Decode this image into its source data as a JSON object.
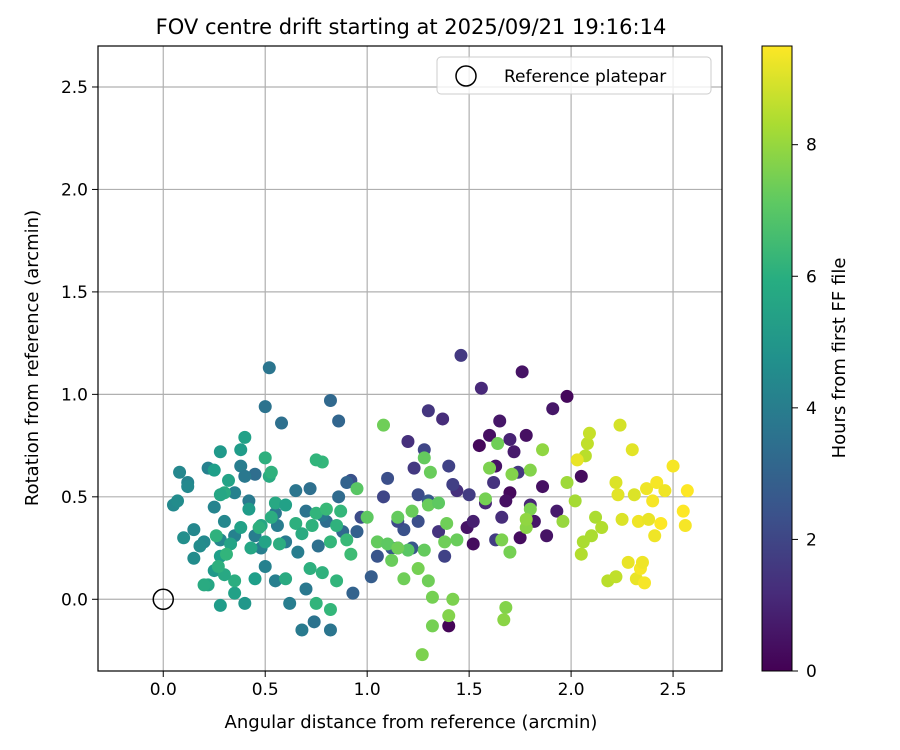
{
  "chart_data": {
    "type": "scatter",
    "title": "FOV centre drift starting at 2025/09/21 19:16:14",
    "xlabel": "Angular distance from reference (arcmin)",
    "ylabel": "Rotation from reference (arcmin)",
    "xlim": [
      -0.32,
      2.74
    ],
    "ylim": [
      -0.35,
      2.7
    ],
    "xticks": [
      0.0,
      0.5,
      1.0,
      1.5,
      2.0,
      2.5
    ],
    "xtick_labels": [
      "0.0",
      "0.5",
      "1.0",
      "1.5",
      "2.0",
      "2.5"
    ],
    "yticks": [
      0.0,
      0.5,
      1.0,
      1.5,
      2.0,
      2.5
    ],
    "ytick_labels": [
      "0.0",
      "0.5",
      "1.0",
      "1.5",
      "2.0",
      "2.5"
    ],
    "grid": true,
    "legend": {
      "position": "top-right",
      "label": "Reference platepar"
    },
    "reference_point": {
      "x": 0.0,
      "y": 0.0
    },
    "colorbar": {
      "label": "Hours from first FF file",
      "min": 0,
      "max": 9.5,
      "ticks": [
        0,
        2,
        4,
        6,
        8
      ],
      "tick_labels": [
        "0",
        "2",
        "4",
        "6",
        "8"
      ],
      "colormap": "viridis"
    },
    "points": [
      {
        "x": 1.4,
        "y": -0.13,
        "h": 0.1
      },
      {
        "x": 1.52,
        "y": 0.27,
        "h": 0.3
      },
      {
        "x": 1.55,
        "y": 0.75,
        "h": 0.2
      },
      {
        "x": 1.6,
        "y": 0.8,
        "h": 0.4
      },
      {
        "x": 1.63,
        "y": 0.65,
        "h": 0.5
      },
      {
        "x": 1.65,
        "y": 0.87,
        "h": 0.6
      },
      {
        "x": 1.7,
        "y": 0.52,
        "h": 0.2
      },
      {
        "x": 1.72,
        "y": 0.72,
        "h": 0.7
      },
      {
        "x": 1.75,
        "y": 0.3,
        "h": 0.3
      },
      {
        "x": 1.76,
        "y": 1.11,
        "h": 0.5
      },
      {
        "x": 1.78,
        "y": 0.8,
        "h": 0.4
      },
      {
        "x": 1.82,
        "y": 0.38,
        "h": 0.6
      },
      {
        "x": 1.86,
        "y": 0.55,
        "h": 0.4
      },
      {
        "x": 1.88,
        "y": 0.31,
        "h": 0.5
      },
      {
        "x": 1.91,
        "y": 0.93,
        "h": 0.6
      },
      {
        "x": 1.93,
        "y": 0.43,
        "h": 0.7
      },
      {
        "x": 1.98,
        "y": 0.99,
        "h": 0.2
      },
      {
        "x": 2.05,
        "y": 0.6,
        "h": 0.3
      },
      {
        "x": 1.49,
        "y": 0.35,
        "h": 0.5
      },
      {
        "x": 1.68,
        "y": 0.48,
        "h": 0.4
      },
      {
        "x": 1.52,
        "y": 0.38,
        "h": 0.8
      },
      {
        "x": 1.46,
        "y": 1.19,
        "h": 1.6
      },
      {
        "x": 1.58,
        "y": 0.47,
        "h": 1.0
      },
      {
        "x": 1.56,
        "y": 1.03,
        "h": 1.1
      },
      {
        "x": 1.62,
        "y": 0.57,
        "h": 1.4
      },
      {
        "x": 1.66,
        "y": 0.4,
        "h": 1.2
      },
      {
        "x": 1.7,
        "y": 0.78,
        "h": 0.9
      },
      {
        "x": 1.74,
        "y": 0.62,
        "h": 1.5
      },
      {
        "x": 1.8,
        "y": 0.46,
        "h": 1.0
      },
      {
        "x": 1.44,
        "y": 0.53,
        "h": 1.3
      },
      {
        "x": 1.5,
        "y": 0.51,
        "h": 1.7
      },
      {
        "x": 1.37,
        "y": 0.88,
        "h": 1.2
      },
      {
        "x": 1.4,
        "y": 0.65,
        "h": 1.9
      },
      {
        "x": 1.42,
        "y": 0.56,
        "h": 1.8
      },
      {
        "x": 1.3,
        "y": 0.92,
        "h": 1.5
      },
      {
        "x": 1.28,
        "y": 0.73,
        "h": 2.0
      },
      {
        "x": 1.23,
        "y": 0.64,
        "h": 1.6
      },
      {
        "x": 1.25,
        "y": 0.51,
        "h": 2.2
      },
      {
        "x": 1.2,
        "y": 0.77,
        "h": 1.3
      },
      {
        "x": 1.18,
        "y": 0.34,
        "h": 2.4
      },
      {
        "x": 1.15,
        "y": 0.38,
        "h": 2.1
      },
      {
        "x": 1.12,
        "y": 0.25,
        "h": 2.6
      },
      {
        "x": 1.1,
        "y": 0.59,
        "h": 2.3
      },
      {
        "x": 1.08,
        "y": 0.5,
        "h": 2.0
      },
      {
        "x": 1.05,
        "y": 0.21,
        "h": 2.5
      },
      {
        "x": 1.02,
        "y": 0.11,
        "h": 2.8
      },
      {
        "x": 0.97,
        "y": 0.4,
        "h": 2.2
      },
      {
        "x": 0.95,
        "y": 0.33,
        "h": 2.9
      },
      {
        "x": 0.92,
        "y": 0.58,
        "h": 2.4
      },
      {
        "x": 1.22,
        "y": 0.25,
        "h": 2.6
      },
      {
        "x": 1.3,
        "y": 0.48,
        "h": 2.7
      },
      {
        "x": 1.35,
        "y": 0.33,
        "h": 1.4
      },
      {
        "x": 1.38,
        "y": 0.21,
        "h": 1.9
      },
      {
        "x": 1.63,
        "y": 0.29,
        "h": 1.7
      },
      {
        "x": 1.15,
        "y": 0.25,
        "h": 2.5
      },
      {
        "x": 1.25,
        "y": 0.38,
        "h": 2.3
      },
      {
        "x": 0.52,
        "y": 1.13,
        "h": 3.7
      },
      {
        "x": 0.5,
        "y": 0.94,
        "h": 3.6
      },
      {
        "x": 0.58,
        "y": 0.86,
        "h": 3.5
      },
      {
        "x": 0.82,
        "y": 0.97,
        "h": 3.2
      },
      {
        "x": 0.86,
        "y": 0.87,
        "h": 3.1
      },
      {
        "x": 0.9,
        "y": 0.57,
        "h": 3.0
      },
      {
        "x": 0.86,
        "y": 0.5,
        "h": 3.3
      },
      {
        "x": 0.8,
        "y": 0.38,
        "h": 3.4
      },
      {
        "x": 0.76,
        "y": 0.26,
        "h": 3.5
      },
      {
        "x": 0.7,
        "y": 0.05,
        "h": 3.8
      },
      {
        "x": 0.68,
        "y": -0.15,
        "h": 3.9
      },
      {
        "x": 0.74,
        "y": -0.11,
        "h": 3.6
      },
      {
        "x": 0.82,
        "y": -0.15,
        "h": 3.7
      },
      {
        "x": 0.93,
        "y": 0.03,
        "h": 3.0
      },
      {
        "x": 0.62,
        "y": -0.02,
        "h": 4.0
      },
      {
        "x": 0.55,
        "y": 0.09,
        "h": 4.1
      },
      {
        "x": 0.5,
        "y": 0.16,
        "h": 4.2
      },
      {
        "x": 0.45,
        "y": 0.61,
        "h": 3.4
      },
      {
        "x": 0.42,
        "y": 0.48,
        "h": 3.9
      },
      {
        "x": 0.38,
        "y": 0.65,
        "h": 4.0
      },
      {
        "x": 0.35,
        "y": 0.52,
        "h": 4.2
      },
      {
        "x": 0.3,
        "y": 0.38,
        "h": 4.4
      },
      {
        "x": 0.25,
        "y": 0.45,
        "h": 4.3
      },
      {
        "x": 0.2,
        "y": 0.28,
        "h": 4.5
      },
      {
        "x": 0.15,
        "y": 0.2,
        "h": 4.6
      },
      {
        "x": 0.1,
        "y": 0.3,
        "h": 4.7
      },
      {
        "x": 0.05,
        "y": 0.46,
        "h": 4.5
      },
      {
        "x": 0.08,
        "y": 0.62,
        "h": 4.4
      },
      {
        "x": 0.12,
        "y": 0.57,
        "h": 4.3
      },
      {
        "x": 0.22,
        "y": 0.64,
        "h": 4.2
      },
      {
        "x": 0.55,
        "y": 0.42,
        "h": 3.8
      },
      {
        "x": 0.6,
        "y": 0.28,
        "h": 3.9
      },
      {
        "x": 0.65,
        "y": 0.53,
        "h": 3.7
      },
      {
        "x": 0.7,
        "y": 0.43,
        "h": 3.6
      },
      {
        "x": 0.72,
        "y": 0.54,
        "h": 3.5
      },
      {
        "x": 0.78,
        "y": 0.41,
        "h": 3.8
      },
      {
        "x": 0.66,
        "y": 0.23,
        "h": 4.0
      },
      {
        "x": 0.88,
        "y": 0.33,
        "h": 3.2
      },
      {
        "x": 0.56,
        "y": 0.36,
        "h": 4.0
      },
      {
        "x": 0.48,
        "y": 0.25,
        "h": 4.1
      },
      {
        "x": 0.15,
        "y": 0.34,
        "h": 4.4
      },
      {
        "x": 0.07,
        "y": 0.48,
        "h": 4.6
      },
      {
        "x": 0.4,
        "y": 0.6,
        "h": 3.8
      },
      {
        "x": 0.45,
        "y": 0.31,
        "h": 4.0
      },
      {
        "x": 0.35,
        "y": 0.31,
        "h": 4.2
      },
      {
        "x": 0.28,
        "y": 0.29,
        "h": 4.4
      },
      {
        "x": 0.12,
        "y": 0.55,
        "h": 4.5
      },
      {
        "x": 0.18,
        "y": 0.26,
        "h": 4.6
      },
      {
        "x": 0.4,
        "y": 0.79,
        "h": 5.4
      },
      {
        "x": 0.38,
        "y": 0.73,
        "h": 5.2
      },
      {
        "x": 0.28,
        "y": 0.72,
        "h": 5.1
      },
      {
        "x": 0.25,
        "y": 0.63,
        "h": 5.3
      },
      {
        "x": 0.32,
        "y": 0.58,
        "h": 5.5
      },
      {
        "x": 0.3,
        "y": 0.52,
        "h": 5.8
      },
      {
        "x": 0.28,
        "y": 0.51,
        "h": 5.6
      },
      {
        "x": 0.42,
        "y": 0.44,
        "h": 5.2
      },
      {
        "x": 0.38,
        "y": 0.35,
        "h": 5.4
      },
      {
        "x": 0.33,
        "y": 0.27,
        "h": 5.5
      },
      {
        "x": 0.28,
        "y": 0.21,
        "h": 5.3
      },
      {
        "x": 0.25,
        "y": 0.14,
        "h": 5.1
      },
      {
        "x": 0.22,
        "y": 0.07,
        "h": 5.6
      },
      {
        "x": 0.28,
        "y": -0.03,
        "h": 5.2
      },
      {
        "x": 0.35,
        "y": 0.03,
        "h": 5.4
      },
      {
        "x": 0.4,
        "y": -0.02,
        "h": 5.0
      },
      {
        "x": 0.45,
        "y": 0.1,
        "h": 5.3
      },
      {
        "x": 0.5,
        "y": 0.69,
        "h": 6.0
      },
      {
        "x": 0.52,
        "y": 0.6,
        "h": 5.8
      },
      {
        "x": 0.53,
        "y": 0.62,
        "h": 6.1
      },
      {
        "x": 0.55,
        "y": 0.47,
        "h": 5.7
      },
      {
        "x": 0.53,
        "y": 0.4,
        "h": 5.9
      },
      {
        "x": 0.48,
        "y": 0.36,
        "h": 5.6
      },
      {
        "x": 0.5,
        "y": 0.28,
        "h": 5.5
      },
      {
        "x": 0.6,
        "y": 0.46,
        "h": 5.4
      },
      {
        "x": 0.65,
        "y": 0.37,
        "h": 6.0
      },
      {
        "x": 0.68,
        "y": 0.32,
        "h": 5.8
      },
      {
        "x": 0.73,
        "y": 0.36,
        "h": 6.1
      },
      {
        "x": 0.75,
        "y": 0.42,
        "h": 6.2
      },
      {
        "x": 0.78,
        "y": 0.67,
        "h": 6.3
      },
      {
        "x": 0.75,
        "y": 0.68,
        "h": 6.2
      },
      {
        "x": 0.8,
        "y": 0.44,
        "h": 6.4
      },
      {
        "x": 0.82,
        "y": 0.28,
        "h": 6.3
      },
      {
        "x": 0.85,
        "y": 0.36,
        "h": 6.1
      },
      {
        "x": 0.87,
        "y": 0.43,
        "h": 6.3
      },
      {
        "x": 0.9,
        "y": 0.29,
        "h": 6.4
      },
      {
        "x": 0.92,
        "y": 0.22,
        "h": 6.5
      },
      {
        "x": 0.75,
        "y": -0.02,
        "h": 6.2
      },
      {
        "x": 0.82,
        "y": -0.05,
        "h": 6.3
      },
      {
        "x": 0.72,
        "y": 0.15,
        "h": 6.0
      },
      {
        "x": 0.78,
        "y": 0.13,
        "h": 6.1
      },
      {
        "x": 0.85,
        "y": 0.09,
        "h": 6.2
      },
      {
        "x": 0.35,
        "y": 0.09,
        "h": 5.9
      },
      {
        "x": 0.3,
        "y": 0.12,
        "h": 5.7
      },
      {
        "x": 0.2,
        "y": 0.07,
        "h": 5.8
      },
      {
        "x": 0.27,
        "y": 0.16,
        "h": 6.0
      },
      {
        "x": 0.31,
        "y": 0.22,
        "h": 6.2
      },
      {
        "x": 0.26,
        "y": 0.31,
        "h": 6.1
      },
      {
        "x": 0.43,
        "y": 0.25,
        "h": 5.6
      },
      {
        "x": 0.47,
        "y": 0.35,
        "h": 6.0
      },
      {
        "x": 0.57,
        "y": 0.27,
        "h": 5.9
      },
      {
        "x": 0.6,
        "y": 0.1,
        "h": 5.8
      },
      {
        "x": 0.95,
        "y": 0.54,
        "h": 7.0
      },
      {
        "x": 1.0,
        "y": 0.4,
        "h": 7.1
      },
      {
        "x": 1.05,
        "y": 0.28,
        "h": 7.2
      },
      {
        "x": 1.08,
        "y": 0.85,
        "h": 7.4
      },
      {
        "x": 1.1,
        "y": 0.27,
        "h": 7.1
      },
      {
        "x": 1.12,
        "y": 0.19,
        "h": 7.3
      },
      {
        "x": 1.15,
        "y": 0.4,
        "h": 7.2
      },
      {
        "x": 1.18,
        "y": 0.1,
        "h": 7.4
      },
      {
        "x": 1.2,
        "y": 0.24,
        "h": 7.0
      },
      {
        "x": 1.22,
        "y": 0.43,
        "h": 7.3
      },
      {
        "x": 1.25,
        "y": 0.15,
        "h": 7.5
      },
      {
        "x": 1.27,
        "y": -0.27,
        "h": 7.6
      },
      {
        "x": 1.28,
        "y": 0.24,
        "h": 7.2
      },
      {
        "x": 1.3,
        "y": 0.09,
        "h": 7.4
      },
      {
        "x": 1.3,
        "y": 0.46,
        "h": 7.3
      },
      {
        "x": 1.32,
        "y": 0.01,
        "h": 7.5
      },
      {
        "x": 1.35,
        "y": 0.47,
        "h": 7.1
      },
      {
        "x": 1.38,
        "y": 0.28,
        "h": 7.4
      },
      {
        "x": 1.4,
        "y": -0.08,
        "h": 7.7
      },
      {
        "x": 1.42,
        "y": 0.0,
        "h": 7.6
      },
      {
        "x": 1.44,
        "y": 0.29,
        "h": 7.3
      },
      {
        "x": 1.32,
        "y": -0.13,
        "h": 7.5
      },
      {
        "x": 1.28,
        "y": 0.69,
        "h": 7.2
      },
      {
        "x": 1.31,
        "y": 0.62,
        "h": 7.3
      },
      {
        "x": 1.39,
        "y": 0.37,
        "h": 7.4
      },
      {
        "x": 1.58,
        "y": 0.49,
        "h": 7.5
      },
      {
        "x": 1.6,
        "y": 0.64,
        "h": 7.6
      },
      {
        "x": 1.64,
        "y": 0.76,
        "h": 7.4
      },
      {
        "x": 1.66,
        "y": 0.29,
        "h": 7.6
      },
      {
        "x": 1.68,
        "y": -0.04,
        "h": 7.7
      },
      {
        "x": 1.67,
        "y": -0.1,
        "h": 7.8
      },
      {
        "x": 1.7,
        "y": 0.23,
        "h": 7.5
      },
      {
        "x": 1.71,
        "y": 0.61,
        "h": 7.7
      },
      {
        "x": 1.78,
        "y": 0.35,
        "h": 7.8
      },
      {
        "x": 1.8,
        "y": 0.44,
        "h": 7.6
      },
      {
        "x": 1.8,
        "y": 0.63,
        "h": 7.7
      },
      {
        "x": 1.86,
        "y": 0.73,
        "h": 7.9
      },
      {
        "x": 1.96,
        "y": 0.38,
        "h": 8.0
      },
      {
        "x": 1.98,
        "y": 0.57,
        "h": 8.1
      },
      {
        "x": 2.02,
        "y": 0.48,
        "h": 8.2
      },
      {
        "x": 2.06,
        "y": 0.28,
        "h": 8.3
      },
      {
        "x": 2.05,
        "y": 0.22,
        "h": 8.4
      },
      {
        "x": 2.07,
        "y": 0.7,
        "h": 8.5
      },
      {
        "x": 2.08,
        "y": 0.76,
        "h": 8.6
      },
      {
        "x": 2.09,
        "y": 0.81,
        "h": 8.7
      },
      {
        "x": 2.12,
        "y": 0.4,
        "h": 8.3
      },
      {
        "x": 2.15,
        "y": 0.35,
        "h": 8.4
      },
      {
        "x": 2.1,
        "y": 0.31,
        "h": 8.3
      },
      {
        "x": 2.18,
        "y": 0.09,
        "h": 8.5
      },
      {
        "x": 2.22,
        "y": 0.11,
        "h": 8.6
      },
      {
        "x": 1.78,
        "y": 0.39,
        "h": 7.9
      },
      {
        "x": 1.15,
        "y": 0.25,
        "h": 7.4
      },
      {
        "x": 2.22,
        "y": 0.57,
        "h": 9.0
      },
      {
        "x": 2.23,
        "y": 0.51,
        "h": 9.1
      },
      {
        "x": 2.24,
        "y": 0.85,
        "h": 8.9
      },
      {
        "x": 2.25,
        "y": 0.39,
        "h": 9.0
      },
      {
        "x": 2.28,
        "y": 0.18,
        "h": 9.2
      },
      {
        "x": 2.3,
        "y": 0.73,
        "h": 9.1
      },
      {
        "x": 2.31,
        "y": 0.51,
        "h": 9.0
      },
      {
        "x": 2.32,
        "y": 0.1,
        "h": 9.2
      },
      {
        "x": 2.33,
        "y": 0.38,
        "h": 9.3
      },
      {
        "x": 2.34,
        "y": 0.15,
        "h": 9.4
      },
      {
        "x": 2.35,
        "y": 0.18,
        "h": 9.3
      },
      {
        "x": 2.36,
        "y": 0.08,
        "h": 9.4
      },
      {
        "x": 2.37,
        "y": 0.54,
        "h": 9.3
      },
      {
        "x": 2.38,
        "y": 0.39,
        "h": 9.2
      },
      {
        "x": 2.4,
        "y": 0.48,
        "h": 9.4
      },
      {
        "x": 2.41,
        "y": 0.31,
        "h": 9.3
      },
      {
        "x": 2.42,
        "y": 0.57,
        "h": 9.4
      },
      {
        "x": 2.44,
        "y": 0.37,
        "h": 9.5
      },
      {
        "x": 2.46,
        "y": 0.53,
        "h": 9.3
      },
      {
        "x": 2.5,
        "y": 0.65,
        "h": 9.4
      },
      {
        "x": 2.55,
        "y": 0.43,
        "h": 9.5
      },
      {
        "x": 2.56,
        "y": 0.36,
        "h": 9.4
      },
      {
        "x": 2.57,
        "y": 0.53,
        "h": 9.5
      },
      {
        "x": 2.03,
        "y": 0.68,
        "h": 9.2
      }
    ]
  }
}
